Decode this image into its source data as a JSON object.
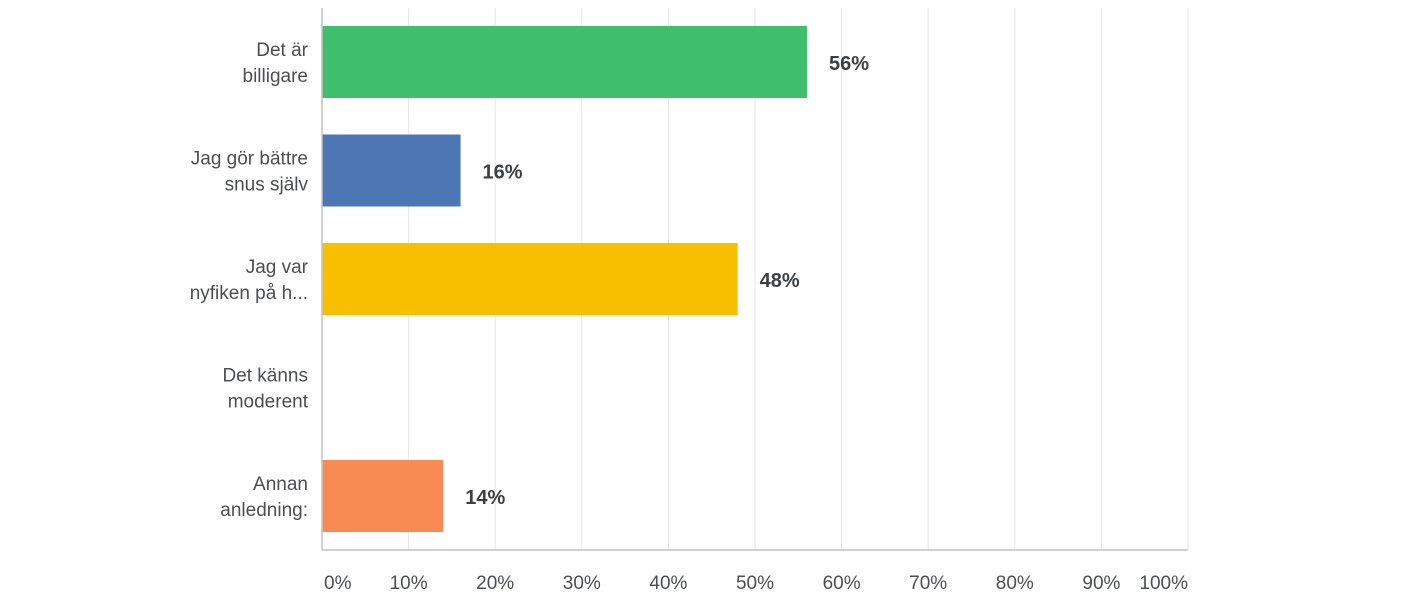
{
  "chart_data": {
    "type": "bar",
    "orientation": "horizontal",
    "categories": [
      [
        "Det är",
        "billigare"
      ],
      [
        "Jag gör bättre",
        "snus själv"
      ],
      [
        "Jag var",
        "nyfiken på h..."
      ],
      [
        "Det känns",
        "moderent"
      ],
      [
        "Annan",
        "anledning:"
      ]
    ],
    "values": [
      56,
      16,
      48,
      0,
      14
    ],
    "value_labels": [
      "56%",
      "16%",
      "48%",
      "",
      "14%"
    ],
    "bar_colors": [
      "#3fbe6e",
      "#4d77b4",
      "#f7bf00",
      "#ffffff",
      "#f68b54"
    ],
    "x_ticks": [
      0,
      10,
      20,
      30,
      40,
      50,
      60,
      70,
      80,
      90,
      100
    ],
    "x_tick_labels": [
      "0%",
      "10%",
      "20%",
      "30%",
      "40%",
      "50%",
      "60%",
      "70%",
      "80%",
      "90%",
      "100%"
    ],
    "xlim": [
      0,
      100
    ],
    "grid": true,
    "title": "",
    "xlabel": "",
    "ylabel": ""
  }
}
